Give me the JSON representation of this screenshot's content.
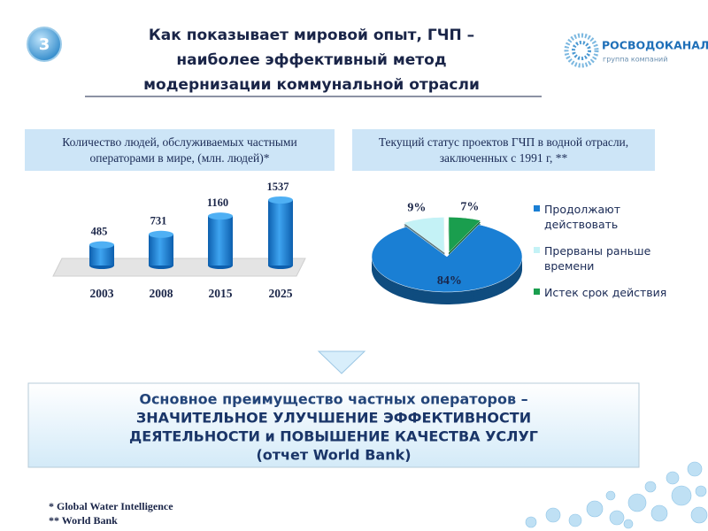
{
  "slide_number": "3",
  "title_lines": [
    "Как показывает мировой опыт, ГЧП –",
    "наиболее эффективный метод",
    "модернизации коммунальной отрасли"
  ],
  "logo": {
    "name": "РОСВОДОКАНАЛ",
    "subtitle": "группа компаний"
  },
  "chart_data": [
    {
      "type": "bar",
      "title": "Количество людей, обслуживаемых частными операторами в мире,  (млн. людей)*",
      "categories": [
        "2003",
        "2008",
        "2015",
        "2025"
      ],
      "values": [
        485,
        731,
        1160,
        1537
      ],
      "color": "#1a84dc"
    },
    {
      "type": "pie",
      "title": "Текущий статус проектов ГЧП в водной отрасли, заключенных с 1991 г,  **",
      "categories": [
        "Продолжают действовать",
        "Прерваны раньше времени",
        "Истек срок действия"
      ],
      "values": [
        84,
        9,
        7
      ],
      "value_labels": [
        "84%",
        "9%",
        "7%"
      ],
      "colors": [
        "#1a7fd4",
        "#c4f2f6",
        "#1a9e4e"
      ],
      "legend": "right"
    }
  ],
  "conclusion": [
    "Основное преимущество частных операторов –",
    "ЗНАЧИТЕЛЬНОЕ УЛУЧШЕНИЕ ЭФФЕКТИВНОСТИ",
    "ДЕЯТЕЛЬНОСТИ и ПОВЫШЕНИЕ КАЧЕСТВА УСЛУГ",
    "(отчет World Bank)"
  ],
  "footnotes": [
    "* Global Water Intelligence",
    "** World Bank"
  ]
}
